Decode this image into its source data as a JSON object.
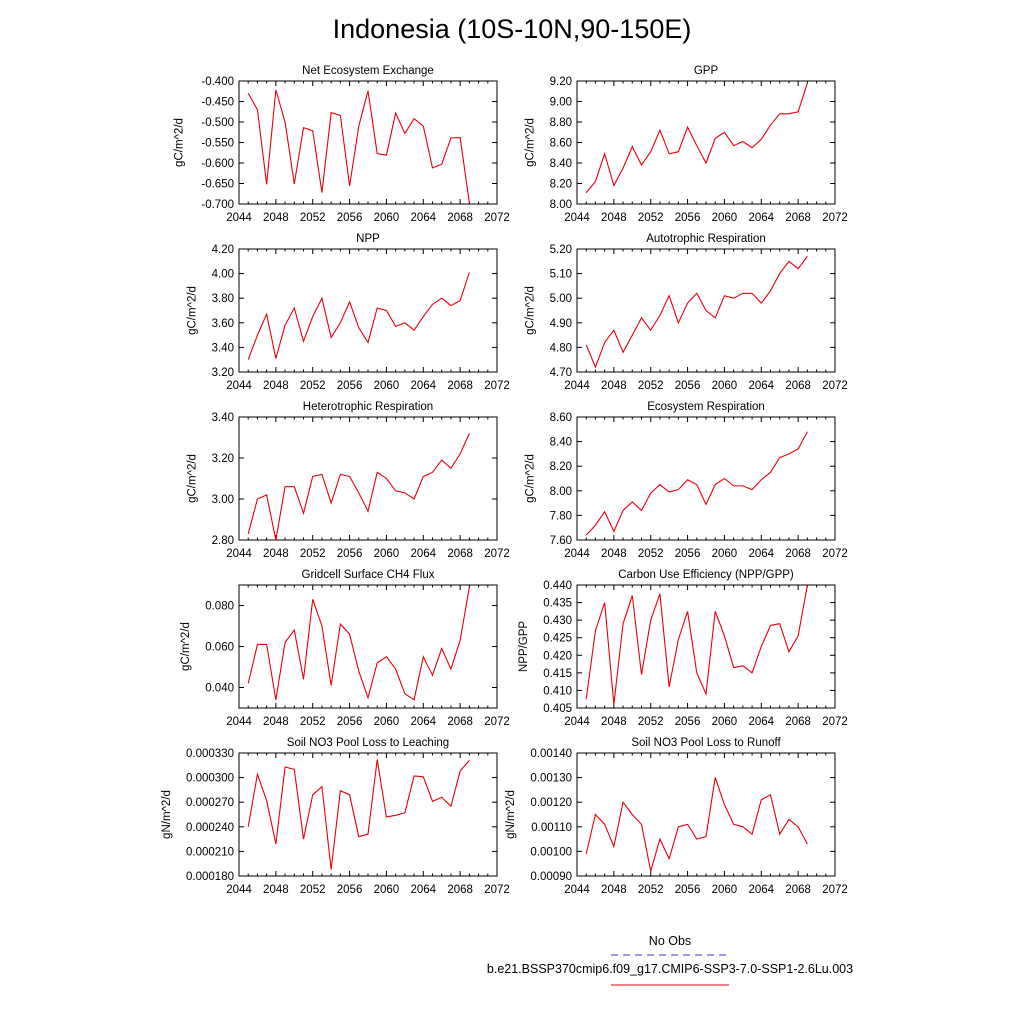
{
  "figure": {
    "title": "Indonesia (10S-10N,90-150E)",
    "legend": {
      "obs_label": "No Obs",
      "obs_color": "#3333cc",
      "run_label": "b.e21.BSSP370cmip6.f09_g17.CMIP6-SSP3-7.0-SSP1-2.6Lu.003",
      "run_color": "#e8000b"
    }
  },
  "chart_data": [
    {
      "type": "line",
      "title": "Net Ecosystem Exchange",
      "ylabel": "gC/m^2/d",
      "xlim": [
        2044,
        2072
      ],
      "xticks": [
        "2044",
        "2048",
        "2052",
        "2056",
        "2060",
        "2064",
        "2068",
        "2072"
      ],
      "ylim": [
        -0.7,
        -0.4
      ],
      "yticks": [
        "-0.400",
        "-0.450",
        "-0.500",
        "-0.550",
        "-0.600",
        "-0.650",
        "-0.700"
      ],
      "ytick_values": [
        -0.4,
        -0.45,
        -0.5,
        -0.55,
        -0.6,
        -0.65,
        -0.7
      ],
      "x": [
        2045,
        2046,
        2047,
        2048,
        2049,
        2050,
        2051,
        2052,
        2053,
        2054,
        2055,
        2056,
        2057,
        2058,
        2059,
        2060,
        2061,
        2062,
        2063,
        2064,
        2065,
        2066,
        2067,
        2068,
        2069
      ],
      "y": [
        -0.43,
        -0.47,
        -0.652,
        -0.422,
        -0.5,
        -0.651,
        -0.514,
        -0.521,
        -0.672,
        -0.477,
        -0.484,
        -0.656,
        -0.51,
        -0.424,
        -0.577,
        -0.581,
        -0.478,
        -0.528,
        -0.492,
        -0.51,
        -0.612,
        -0.603,
        -0.539,
        -0.538,
        -0.697
      ]
    },
    {
      "type": "line",
      "title": "GPP",
      "ylabel": "gC/m^2/d",
      "xlim": [
        2044,
        2072
      ],
      "xticks": [
        "2044",
        "2048",
        "2052",
        "2056",
        "2060",
        "2064",
        "2068",
        "2072"
      ],
      "ylim": [
        8.0,
        9.2
      ],
      "yticks": [
        "9.20",
        "9.00",
        "8.80",
        "8.60",
        "8.40",
        "8.20",
        "8.00"
      ],
      "ytick_values": [
        9.2,
        9.0,
        8.8,
        8.6,
        8.4,
        8.2,
        8.0
      ],
      "x": [
        2045,
        2046,
        2047,
        2048,
        2049,
        2050,
        2051,
        2052,
        2053,
        2054,
        2055,
        2056,
        2057,
        2058,
        2059,
        2060,
        2061,
        2062,
        2063,
        2064,
        2065,
        2066,
        2067,
        2068,
        2069
      ],
      "y": [
        8.11,
        8.22,
        8.49,
        8.18,
        8.35,
        8.56,
        8.38,
        8.51,
        8.72,
        8.49,
        8.51,
        8.75,
        8.57,
        8.4,
        8.64,
        8.7,
        8.57,
        8.61,
        8.55,
        8.63,
        8.77,
        8.88,
        8.88,
        8.9,
        9.18
      ]
    },
    {
      "type": "line",
      "title": "NPP",
      "ylabel": "gC/m^2/d",
      "xlim": [
        2044,
        2072
      ],
      "xticks": [
        "2044",
        "2048",
        "2052",
        "2056",
        "2060",
        "2064",
        "2068",
        "2072"
      ],
      "ylim": [
        3.2,
        4.2
      ],
      "yticks": [
        "4.20",
        "4.00",
        "3.80",
        "3.60",
        "3.40",
        "3.20"
      ],
      "ytick_values": [
        4.2,
        4.0,
        3.8,
        3.6,
        3.4,
        3.2
      ],
      "x": [
        2045,
        2046,
        2047,
        2048,
        2049,
        2050,
        2051,
        2052,
        2053,
        2054,
        2055,
        2056,
        2057,
        2058,
        2059,
        2060,
        2061,
        2062,
        2063,
        2064,
        2065,
        2066,
        2067,
        2068,
        2069
      ],
      "y": [
        3.3,
        3.5,
        3.67,
        3.31,
        3.58,
        3.72,
        3.45,
        3.65,
        3.8,
        3.48,
        3.6,
        3.77,
        3.56,
        3.44,
        3.72,
        3.7,
        3.57,
        3.6,
        3.54,
        3.65,
        3.75,
        3.8,
        3.74,
        3.78,
        4.01
      ]
    },
    {
      "type": "line",
      "title": "Autotrophic Respiration",
      "ylabel": "gC/m^2/d",
      "xlim": [
        2044,
        2072
      ],
      "xticks": [
        "2044",
        "2048",
        "2052",
        "2056",
        "2060",
        "2064",
        "2068",
        "2072"
      ],
      "ylim": [
        4.7,
        5.2
      ],
      "yticks": [
        "5.20",
        "5.10",
        "5.00",
        "4.90",
        "4.80",
        "4.70"
      ],
      "ytick_values": [
        5.2,
        5.1,
        5.0,
        4.9,
        4.8,
        4.7
      ],
      "x": [
        2045,
        2046,
        2047,
        2048,
        2049,
        2050,
        2051,
        2052,
        2053,
        2054,
        2055,
        2056,
        2057,
        2058,
        2059,
        2060,
        2061,
        2062,
        2063,
        2064,
        2065,
        2066,
        2067,
        2068,
        2069
      ],
      "y": [
        4.81,
        4.72,
        4.82,
        4.87,
        4.78,
        4.85,
        4.92,
        4.87,
        4.93,
        5.01,
        4.9,
        4.98,
        5.02,
        4.95,
        4.92,
        5.01,
        5.0,
        5.02,
        5.02,
        4.98,
        5.03,
        5.1,
        5.15,
        5.12,
        5.17
      ]
    },
    {
      "type": "line",
      "title": "Heterotrophic Respiration",
      "ylabel": "gC/m^2/d",
      "xlim": [
        2044,
        2072
      ],
      "xticks": [
        "2044",
        "2048",
        "2052",
        "2056",
        "2060",
        "2064",
        "2068",
        "2072"
      ],
      "ylim": [
        2.8,
        3.4
      ],
      "yticks": [
        "3.40",
        "3.20",
        "3.00",
        "2.80"
      ],
      "ytick_values": [
        3.4,
        3.2,
        3.0,
        2.8
      ],
      "x": [
        2045,
        2046,
        2047,
        2048,
        2049,
        2050,
        2051,
        2052,
        2053,
        2054,
        2055,
        2056,
        2057,
        2058,
        2059,
        2060,
        2061,
        2062,
        2063,
        2064,
        2065,
        2066,
        2067,
        2068,
        2069
      ],
      "y": [
        2.83,
        3.0,
        3.02,
        2.8,
        3.06,
        3.06,
        2.93,
        3.11,
        3.12,
        2.98,
        3.12,
        3.11,
        3.03,
        2.94,
        3.13,
        3.1,
        3.04,
        3.03,
        3.0,
        3.11,
        3.13,
        3.19,
        3.15,
        3.22,
        3.32
      ]
    },
    {
      "type": "line",
      "title": "Ecosystem Respiration",
      "ylabel": "gC/m^2/d",
      "xlim": [
        2044,
        2072
      ],
      "xticks": [
        "2044",
        "2048",
        "2052",
        "2056",
        "2060",
        "2064",
        "2068",
        "2072"
      ],
      "ylim": [
        7.6,
        8.6
      ],
      "yticks": [
        "8.60",
        "8.40",
        "8.20",
        "8.00",
        "7.80",
        "7.60"
      ],
      "ytick_values": [
        8.6,
        8.4,
        8.2,
        8.0,
        7.8,
        7.6
      ],
      "x": [
        2045,
        2046,
        2047,
        2048,
        2049,
        2050,
        2051,
        2052,
        2053,
        2054,
        2055,
        2056,
        2057,
        2058,
        2059,
        2060,
        2061,
        2062,
        2063,
        2064,
        2065,
        2066,
        2067,
        2068,
        2069
      ],
      "y": [
        7.64,
        7.72,
        7.83,
        7.67,
        7.84,
        7.91,
        7.84,
        7.98,
        8.05,
        7.99,
        8.01,
        8.09,
        8.05,
        7.89,
        8.05,
        8.1,
        8.04,
        8.04,
        8.01,
        8.09,
        8.15,
        8.27,
        8.3,
        8.34,
        8.48
      ]
    },
    {
      "type": "line",
      "title": "Gridcell Surface CH4 Flux",
      "ylabel": "gC/m^2/d",
      "xlim": [
        2044,
        2072
      ],
      "xticks": [
        "2044",
        "2048",
        "2052",
        "2056",
        "2060",
        "2064",
        "2068",
        "2072"
      ],
      "ylim": [
        0.03,
        0.09
      ],
      "yticks": [
        "0.080",
        "0.060",
        "0.040"
      ],
      "ytick_values": [
        0.08,
        0.06,
        0.04
      ],
      "x": [
        2045,
        2046,
        2047,
        2048,
        2049,
        2050,
        2051,
        2052,
        2053,
        2054,
        2055,
        2056,
        2057,
        2058,
        2059,
        2060,
        2061,
        2062,
        2063,
        2064,
        2065,
        2066,
        2067,
        2068,
        2069
      ],
      "y": [
        0.042,
        0.061,
        0.061,
        0.034,
        0.062,
        0.068,
        0.044,
        0.083,
        0.07,
        0.041,
        0.071,
        0.066,
        0.048,
        0.035,
        0.052,
        0.055,
        0.049,
        0.037,
        0.034,
        0.055,
        0.046,
        0.059,
        0.049,
        0.063,
        0.089
      ]
    },
    {
      "type": "line",
      "title": "Carbon Use Efficiency (NPP/GPP)",
      "ylabel": "NPP/GPP",
      "xlim": [
        2044,
        2072
      ],
      "xticks": [
        "2044",
        "2048",
        "2052",
        "2056",
        "2060",
        "2064",
        "2068",
        "2072"
      ],
      "ylim": [
        0.405,
        0.44
      ],
      "yticks": [
        "0.440",
        "0.435",
        "0.430",
        "0.425",
        "0.420",
        "0.415",
        "0.410",
        "0.405"
      ],
      "ytick_values": [
        0.44,
        0.435,
        0.43,
        0.425,
        0.42,
        0.415,
        0.41,
        0.405
      ],
      "x": [
        2045,
        2046,
        2047,
        2048,
        2049,
        2050,
        2051,
        2052,
        2053,
        2054,
        2055,
        2056,
        2057,
        2058,
        2059,
        2060,
        2061,
        2062,
        2063,
        2064,
        2065,
        2066,
        2067,
        2068,
        2069
      ],
      "y": [
        0.4075,
        0.427,
        0.435,
        0.406,
        0.429,
        0.437,
        0.4145,
        0.43,
        0.4375,
        0.411,
        0.4245,
        0.4325,
        0.415,
        0.409,
        0.4325,
        0.4255,
        0.4165,
        0.417,
        0.415,
        0.4225,
        0.4285,
        0.429,
        0.421,
        0.4255,
        0.44
      ]
    },
    {
      "type": "line",
      "title": "Soil NO3 Pool Loss to Leaching",
      "ylabel": "gN/m^2/d",
      "xlim": [
        2044,
        2072
      ],
      "xticks": [
        "2044",
        "2048",
        "2052",
        "2056",
        "2060",
        "2064",
        "2068",
        "2072"
      ],
      "ylim": [
        0.00018,
        0.00033
      ],
      "yticks": [
        "0.000330",
        "0.000300",
        "0.000270",
        "0.000240",
        "0.000210",
        "0.000180"
      ],
      "ytick_values": [
        0.00033,
        0.0003,
        0.00027,
        0.00024,
        0.00021,
        0.00018
      ],
      "x": [
        2045,
        2046,
        2047,
        2048,
        2049,
        2050,
        2051,
        2052,
        2053,
        2054,
        2055,
        2056,
        2057,
        2058,
        2059,
        2060,
        2061,
        2062,
        2063,
        2064,
        2065,
        2066,
        2067,
        2068,
        2069
      ],
      "y": [
        0.00024,
        0.000304,
        0.000272,
        0.000219,
        0.000313,
        0.00031,
        0.000225,
        0.000279,
        0.000289,
        0.000188,
        0.000284,
        0.000279,
        0.000228,
        0.000231,
        0.000322,
        0.000252,
        0.000254,
        0.000257,
        0.000302,
        0.000301,
        0.000271,
        0.000276,
        0.000265,
        0.000308,
        0.000321
      ]
    },
    {
      "type": "line",
      "title": "Soil NO3 Pool Loss to Runoff",
      "ylabel": "gN/m^2/d",
      "xlim": [
        2044,
        2072
      ],
      "xticks": [
        "2044",
        "2048",
        "2052",
        "2056",
        "2060",
        "2064",
        "2068",
        "2072"
      ],
      "ylim": [
        0.0009,
        0.0014
      ],
      "yticks": [
        "0.00140",
        "0.00130",
        "0.00120",
        "0.00110",
        "0.00100",
        "0.00090"
      ],
      "ytick_values": [
        0.0014,
        0.0013,
        0.0012,
        0.0011,
        0.001,
        0.0009
      ],
      "x": [
        2045,
        2046,
        2047,
        2048,
        2049,
        2050,
        2051,
        2052,
        2053,
        2054,
        2055,
        2056,
        2057,
        2058,
        2059,
        2060,
        2061,
        2062,
        2063,
        2064,
        2065,
        2066,
        2067,
        2068,
        2069
      ],
      "y": [
        0.00099,
        0.00115,
        0.00111,
        0.00102,
        0.0012,
        0.00115,
        0.00111,
        0.00092,
        0.00105,
        0.00097,
        0.0011,
        0.00111,
        0.00105,
        0.00106,
        0.0013,
        0.00119,
        0.00111,
        0.0011,
        0.00107,
        0.00121,
        0.00123,
        0.00107,
        0.00113,
        0.0011,
        0.00103
      ]
    }
  ]
}
